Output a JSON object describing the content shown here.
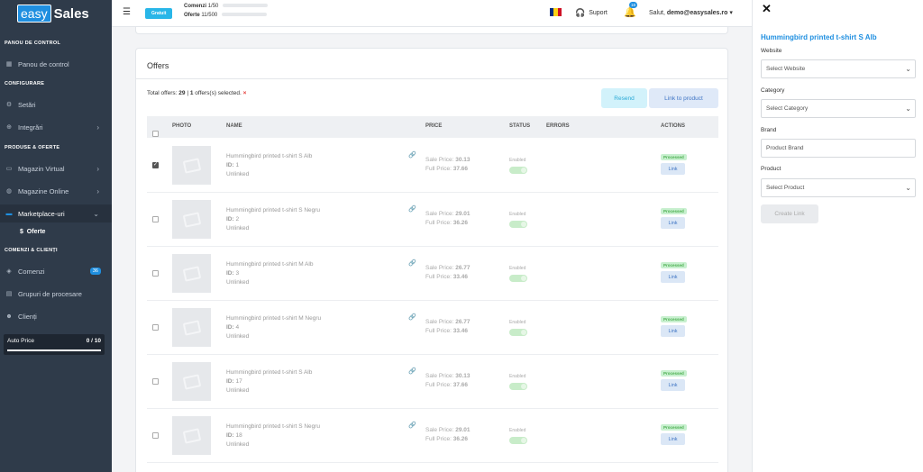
{
  "app": {
    "logo_easy": "easy",
    "logo_sales": "Sales"
  },
  "sidebar": {
    "sections": [
      "PANOU DE CONTROL",
      "CONFIGURARE",
      "PRODUSE & OFERTE",
      "COMENZI & CLIENȚI"
    ],
    "items": [
      {
        "label": "Panou de control",
        "icon": "dashboard-icon"
      },
      {
        "label": "Setări",
        "icon": "gear-icon"
      },
      {
        "label": "Integrări",
        "icon": "integration-icon"
      },
      {
        "label": "Magazin Virtual",
        "icon": "store-icon"
      },
      {
        "label": "Magazine Online",
        "icon": "globe-icon"
      },
      {
        "label": "Marketplace-uri",
        "icon": "marketplace-icon"
      },
      {
        "label": "Comenzi",
        "icon": "tag-icon",
        "badge": "36"
      },
      {
        "label": "Grupuri de procesare",
        "icon": "group-icon"
      },
      {
        "label": "Clienți",
        "icon": "users-icon"
      }
    ],
    "subitem": "Oferte",
    "subitem_icon": "$",
    "auto_price": {
      "label": "Auto Price",
      "count": "0 / 10"
    }
  },
  "topbar": {
    "plan": "Gratuit",
    "orders_label": "Comenzi",
    "orders_value": "1/50",
    "offers_label": "Oferte",
    "offers_value": "11/500",
    "support": "Suport",
    "notifications": "18",
    "greeting": "Salut, ",
    "user": "demo@easysales.ro"
  },
  "offers": {
    "title": "Offers",
    "total_prefix": "Total offers: ",
    "total_count": "29",
    "selected_sep": " | ",
    "selected_count": "1",
    "selected_suffix": " offers(s) selected.",
    "clear": "×",
    "resend": "Resend",
    "link_to_product": "Link to product",
    "headers": {
      "photo": "PHOTO",
      "name": "NAME",
      "price": "PRICE",
      "status": "STATUS",
      "errors": "ERRORS",
      "actions": "ACTIONS"
    },
    "rows": [
      {
        "name": "Hummingbird printed t-shirt S Alb",
        "id_label": "ID:",
        "id": "1",
        "state": "Unlinked",
        "sale_label": "Sale Price:",
        "sale": "30.13",
        "full_label": "Full Price:",
        "full": "37.66",
        "status": "Enabled",
        "processed": "Processed",
        "link": "Link",
        "checked": true
      },
      {
        "name": "Hummingbird printed t-shirt S Negru",
        "id_label": "ID:",
        "id": "2",
        "state": "Unlinked",
        "sale_label": "Sale Price:",
        "sale": "29.01",
        "full_label": "Full Price:",
        "full": "36.26",
        "status": "Enabled",
        "processed": "Processed",
        "link": "Link",
        "checked": false
      },
      {
        "name": "Hummingbird printed t-shirt M Alb",
        "id_label": "ID:",
        "id": "3",
        "state": "Unlinked",
        "sale_label": "Sale Price:",
        "sale": "26.77",
        "full_label": "Full Price:",
        "full": "33.46",
        "status": "Enabled",
        "processed": "Processed",
        "link": "Link",
        "checked": false
      },
      {
        "name": "Hummingbird printed t-shirt M Negru",
        "id_label": "ID:",
        "id": "4",
        "state": "Unlinked",
        "sale_label": "Sale Price:",
        "sale": "26.77",
        "full_label": "Full Price:",
        "full": "33.46",
        "status": "Enabled",
        "processed": "Processed",
        "link": "Link",
        "checked": false
      },
      {
        "name": "Hummingbird printed t-shirt S Alb",
        "id_label": "ID:",
        "id": "17",
        "state": "Unlinked",
        "sale_label": "Sale Price:",
        "sale": "30.13",
        "full_label": "Full Price:",
        "full": "37.66",
        "status": "Enabled",
        "processed": "Processed",
        "link": "Link",
        "checked": false
      },
      {
        "name": "Hummingbird printed t-shirt S Negru",
        "id_label": "ID:",
        "id": "18",
        "state": "Unlinked",
        "sale_label": "Sale Price:",
        "sale": "29.01",
        "full_label": "Full Price:",
        "full": "36.26",
        "status": "Enabled",
        "processed": "Processed",
        "link": "Link",
        "checked": false
      }
    ]
  },
  "panel": {
    "title": "Hummingbird printed t-shirt S Alb",
    "website_label": "Website",
    "website_value": "Select Website",
    "category_label": "Category",
    "category_value": "Select Category",
    "brand_label": "Brand",
    "brand_value": "Product Brand",
    "product_label": "Product",
    "product_value": "Select Product",
    "create": "Create Link"
  },
  "colors": {
    "accent": "#1f8fe0",
    "sidebar": "#2f3b4a",
    "flag": [
      "#002b7f",
      "#fcd116",
      "#ce1126"
    ]
  }
}
